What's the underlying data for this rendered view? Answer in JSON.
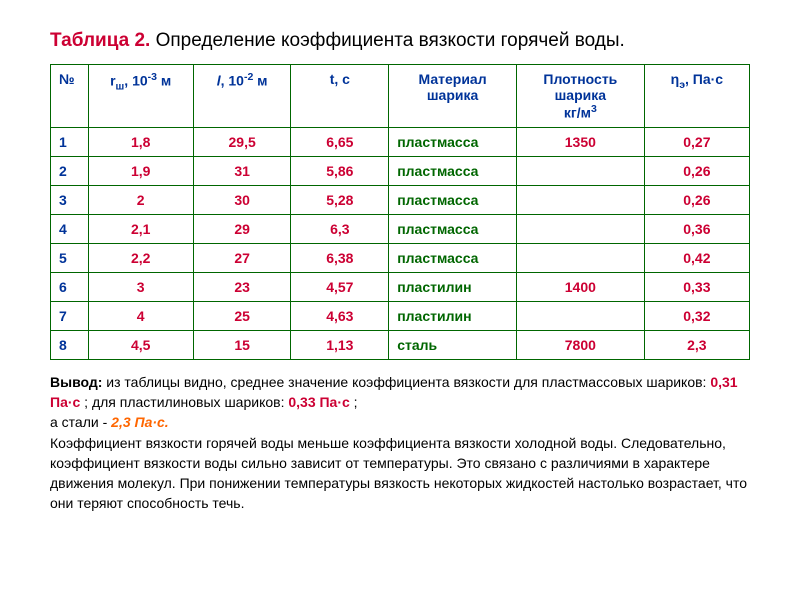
{
  "title": {
    "label": "Таблица 2.",
    "text": "Определение коэффициента вязкости горячей воды."
  },
  "table": {
    "headers": {
      "n": "№",
      "r_pre": "r",
      "r_sub": "ш",
      "r_post": ", 10",
      "r_sup": "-3",
      "r_end": " м",
      "l_pre": "l",
      "l_post": ", 10",
      "l_sup": "-2",
      "l_end": " м",
      "t": "t, c",
      "material": "Материал шарика",
      "density_l1": "Плотность шарика",
      "density_l2": "кг/м",
      "density_sup": "3",
      "eta_pre": "η",
      "eta_sub": "э",
      "eta_post": ", Па·с"
    },
    "rows": [
      {
        "n": "1",
        "r": "1,8",
        "l": "29,5",
        "t": "6,65",
        "mat": "пластмасса",
        "d": "1350",
        "eta": "0,27"
      },
      {
        "n": "2",
        "r": "1,9",
        "l": "31",
        "t": "5,86",
        "mat": "пластмасса",
        "d": "",
        "eta": "0,26"
      },
      {
        "n": "3",
        "r": "2",
        "l": "30",
        "t": "5,28",
        "mat": "пластмасса",
        "d": "",
        "eta": "0,26"
      },
      {
        "n": "4",
        "r": "2,1",
        "l": "29",
        "t": "6,3",
        "mat": "пластмасса",
        "d": "",
        "eta": "0,36"
      },
      {
        "n": "5",
        "r": "2,2",
        "l": "27",
        "t": "6,38",
        "mat": "пластмасса",
        "d": "",
        "eta": "0,42"
      },
      {
        "n": "6",
        "r": "3",
        "l": "23",
        "t": "4,57",
        "mat": "пластилин",
        "d": "1400",
        "eta": "0,33"
      },
      {
        "n": "7",
        "r": "4",
        "l": "25",
        "t": "4,63",
        "mat": "пластилин",
        "d": "",
        "eta": "0,32"
      },
      {
        "n": "8",
        "r": "4,5",
        "l": "15",
        "t": "1,13",
        "mat": "сталь",
        "d": "7800",
        "eta": "2,3"
      }
    ]
  },
  "conclusion": {
    "label": "Вывод:",
    "p1a": " из таблицы видно, среднее значение коэффициента вязкости для пластмассовых шариков: ",
    "v1": "0,31 Па·с",
    "p1b": " ;  для пластилиновых шариков: ",
    "v2": "0,33 Па·с",
    "p1c": " ;",
    "p2a": "а стали - ",
    "v3": "2,3 Па·с.",
    "p3": "Коэффициент вязкости горячей воды меньше коэффициента вязкости холодной воды. Следовательно, коэффициент вязкости воды сильно зависит от температуры. Это связано с различиями в характере движения молекул. При понижении температуры вязкость некоторых жидкостей настолько возрастает, что они теряют способность течь."
  }
}
